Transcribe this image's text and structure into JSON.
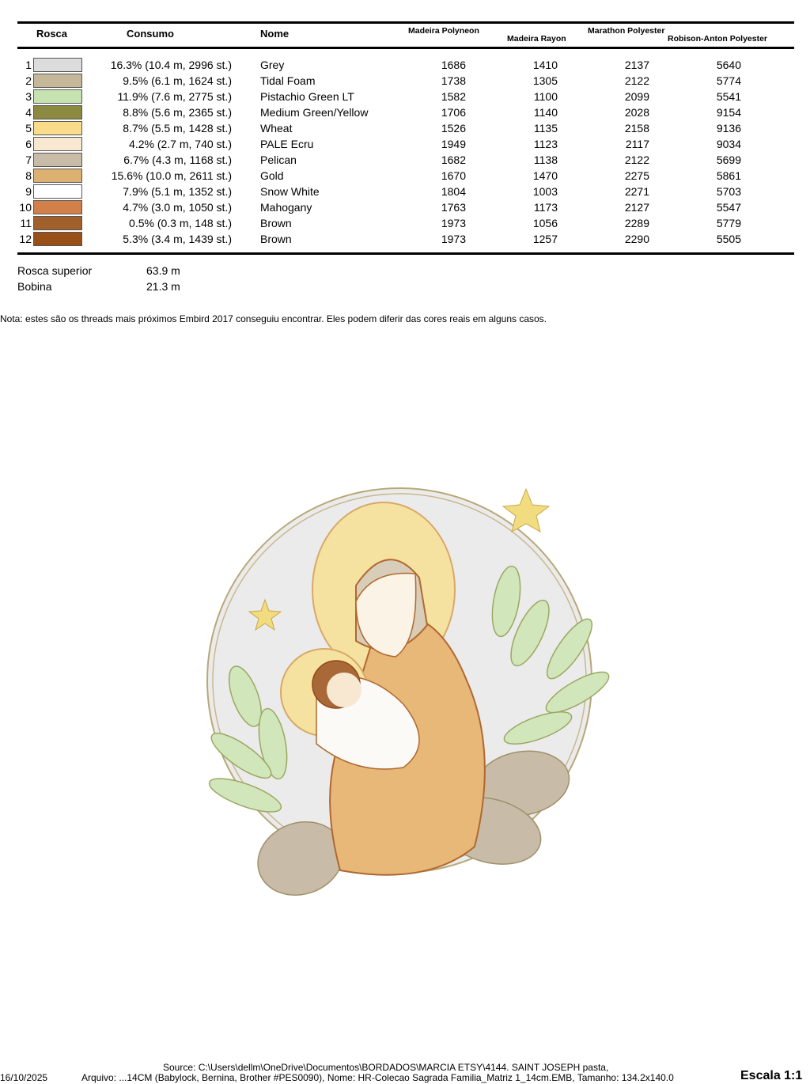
{
  "headers": {
    "rosca": "Rosca",
    "consumo": "Consumo",
    "nome": "Nome",
    "madeira_polyneon": "Madeira Polyneon",
    "madeira_rayon": "Madeira Rayon",
    "marathon": "Marathon Polyester",
    "robison": "Robison-Anton Polyester"
  },
  "rows": [
    {
      "n": "1",
      "color": "#dcdcdc",
      "consumo": "16.3% (10.4 m, 2996 st.)",
      "nome": "Grey",
      "mp": "1686",
      "mr": "1410",
      "mar": "2137",
      "ra": "5640"
    },
    {
      "n": "2",
      "color": "#c4b898",
      "consumo": "9.5% (6.1 m, 1624 st.)",
      "nome": "Tidal Foam",
      "mp": "1738",
      "mr": "1305",
      "mar": "2122",
      "ra": "5774"
    },
    {
      "n": "3",
      "color": "#c6e2b0",
      "consumo": "11.9% (7.6 m, 2775 st.)",
      "nome": "Pistachio Green LT",
      "mp": "1582",
      "mr": "1100",
      "mar": "2099",
      "ra": "5541"
    },
    {
      "n": "4",
      "color": "#8c8a40",
      "consumo": "8.8% (5.6 m, 2365 st.)",
      "nome": "Medium Green/Yellow",
      "mp": "1706",
      "mr": "1140",
      "mar": "2028",
      "ra": "9154"
    },
    {
      "n": "5",
      "color": "#f8dc8c",
      "consumo": "8.7% (5.5 m, 1428 st.)",
      "nome": "Wheat",
      "mp": "1526",
      "mr": "1135",
      "mar": "2158",
      "ra": "9136"
    },
    {
      "n": "6",
      "color": "#f8e8d2",
      "consumo": "4.2% (2.7 m, 740 st.)",
      "nome": "PALE Ecru",
      "mp": "1949",
      "mr": "1123",
      "mar": "2117",
      "ra": "9034"
    },
    {
      "n": "7",
      "color": "#c8bca8",
      "consumo": "6.7% (4.3 m, 1168 st.)",
      "nome": "Pelican",
      "mp": "1682",
      "mr": "1138",
      "mar": "2122",
      "ra": "5699"
    },
    {
      "n": "8",
      "color": "#dcb070",
      "consumo": "15.6% (10.0 m, 2611 st.)",
      "nome": "Gold",
      "mp": "1670",
      "mr": "1470",
      "mar": "2275",
      "ra": "5861"
    },
    {
      "n": "9",
      "color": "#ffffff",
      "consumo": "7.9% (5.1 m, 1352 st.)",
      "nome": "Snow White",
      "mp": "1804",
      "mr": "1003",
      "mar": "2271",
      "ra": "5703"
    },
    {
      "n": "10",
      "color": "#d08048",
      "consumo": "4.7% (3.0 m, 1050 st.)",
      "nome": "Mahogany",
      "mp": "1763",
      "mr": "1173",
      "mar": "2127",
      "ra": "5547"
    },
    {
      "n": "11",
      "color": "#a0602c",
      "consumo": "0.5% (0.3 m, 148 st.)",
      "nome": "Brown",
      "mp": "1973",
      "mr": "1056",
      "mar": "2289",
      "ra": "5779"
    },
    {
      "n": "12",
      "color": "#985018",
      "consumo": "5.3% (3.4 m, 1439 st.)",
      "nome": "Brown",
      "mp": "1973",
      "mr": "1257",
      "mar": "2290",
      "ra": "5505"
    }
  ],
  "totals": {
    "superior_label": "Rosca superior",
    "superior_value": "63.9 m",
    "bobina_label": "Bobina",
    "bobina_value": "21.3 m"
  },
  "note": "Nota: estes são os threads mais próximos Embird 2017 conseguiu encontrar. Eles podem diferir das cores reais em alguns casos.",
  "footer": {
    "date": "16/10/2025",
    "source": "Source: C:\\Users\\dellm\\OneDrive\\Documentos\\BORDADOS\\MARCIA ETSY\\4144. SAINT JOSEPH pasta,",
    "arquivo": "Arquivo: ...14CM (Babylock, Bernina, Brother #PES0090), Nome: HR-Colecao Sagrada Familia_Matriz 1_14cm.EMB, Tamanho: 134.2x140.0",
    "escala": "Escala 1:1"
  }
}
